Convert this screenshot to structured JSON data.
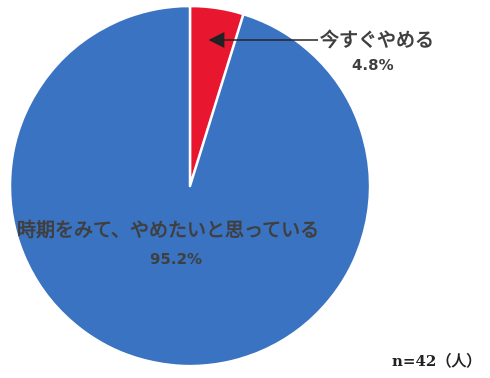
{
  "chart_data": {
    "type": "pie",
    "slices": [
      {
        "label": "今すぐやめる",
        "value": 4.8,
        "value_label": "4.8%",
        "color": "#e8172f"
      },
      {
        "label": "時期をみて、やめたいと思っている",
        "value": 95.2,
        "value_label": "95.2%",
        "color": "#3a73c2"
      }
    ],
    "start_angle_deg": 0,
    "direction": "clockwise",
    "note": "n=42（人）"
  }
}
